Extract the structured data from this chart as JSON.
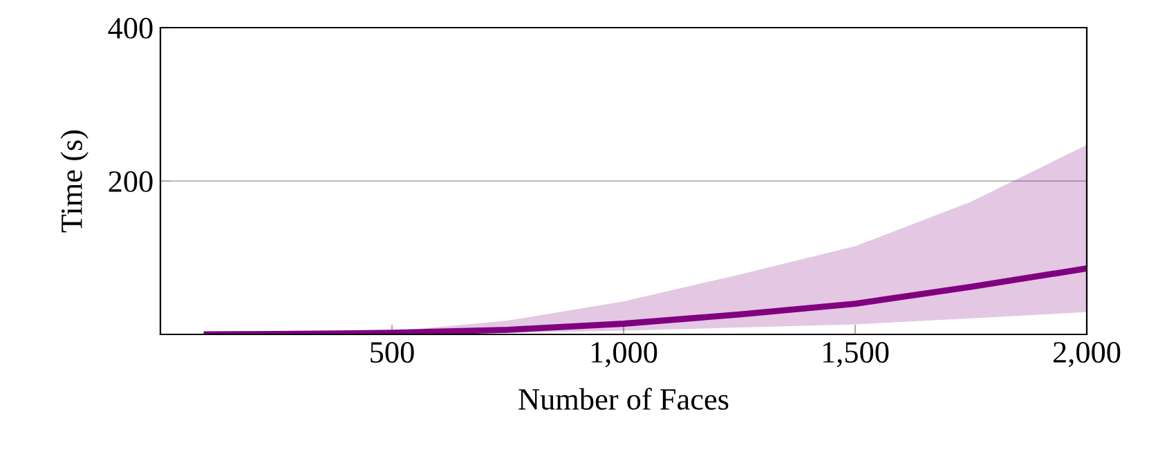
{
  "chart_data": {
    "type": "line",
    "xlabel": "Number of Faces",
    "ylabel": "Time (s)",
    "x": [
      100,
      250,
      500,
      750,
      1000,
      1250,
      1500,
      1750,
      2000
    ],
    "series": [
      {
        "color": "#800080",
        "values": [
          0,
          0.5,
          2,
          6,
          14,
          26,
          40,
          62,
          86
        ],
        "lower": [
          0,
          0.2,
          1,
          2,
          5,
          9,
          13,
          21,
          29
        ],
        "upper": [
          0,
          1,
          4,
          18,
          43,
          78,
          115,
          173,
          247
        ]
      }
    ],
    "xlim": [
      0,
      2000
    ],
    "ylim": [
      0,
      400
    ],
    "xticks": [
      {
        "value": 500,
        "label": "500"
      },
      {
        "value": 1000,
        "label": "1,000"
      },
      {
        "value": 1500,
        "label": "1,500"
      },
      {
        "value": 2000,
        "label": "2,000"
      }
    ],
    "yticks": [
      200,
      400
    ],
    "grid": "y",
    "marker": "none",
    "line_style": "solid"
  }
}
